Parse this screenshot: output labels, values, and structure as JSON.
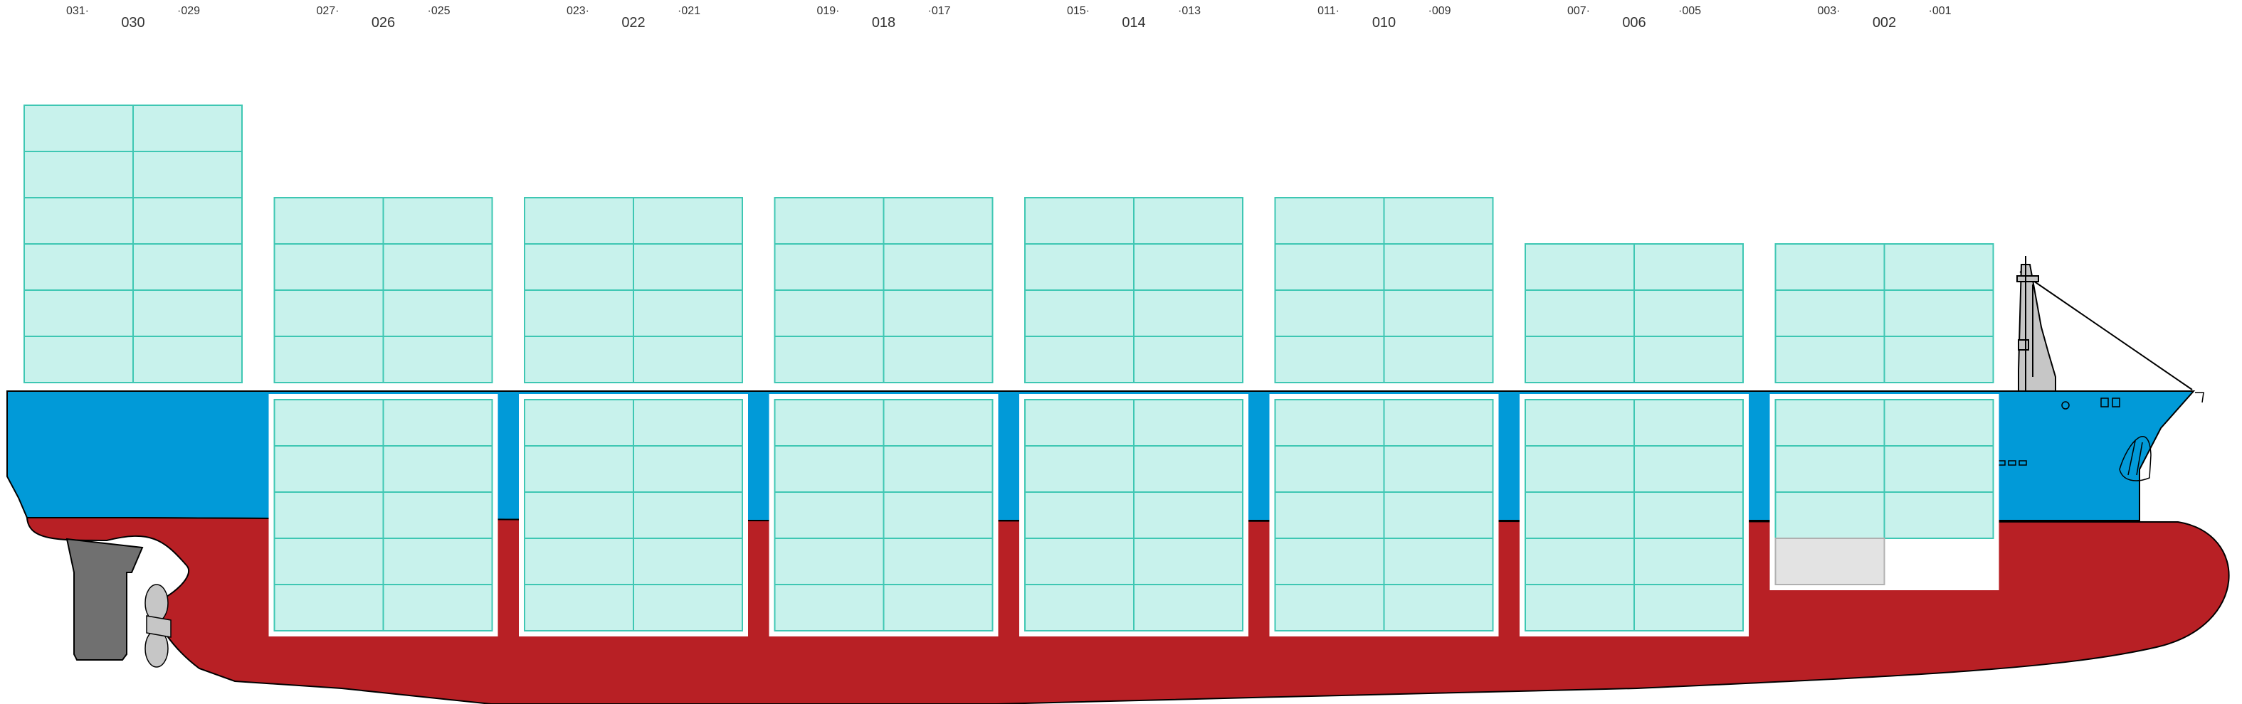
{
  "colors": {
    "hull_red": "#b82025",
    "hull_blue": "#019ad8",
    "container_fill": "#c8f2ec",
    "container_stroke": "#3ec7b3",
    "empty_slot_fill": "#e3e3e3",
    "empty_slot_stroke": "#b0b0b0",
    "rudder": "#707070",
    "label_text": "#333333"
  },
  "bays": [
    {
      "label": "030",
      "fwd_label": "031·",
      "aft_label": "·029",
      "deck_tiers": 6,
      "hold_tiers": 0,
      "empty_hold_slots": []
    },
    {
      "label": "026",
      "fwd_label": "027·",
      "aft_label": "·025",
      "deck_tiers": 4,
      "hold_tiers": 5,
      "empty_hold_slots": []
    },
    {
      "label": "022",
      "fwd_label": "023·",
      "aft_label": "·021",
      "deck_tiers": 4,
      "hold_tiers": 5,
      "empty_hold_slots": []
    },
    {
      "label": "018",
      "fwd_label": "019·",
      "aft_label": "·017",
      "deck_tiers": 4,
      "hold_tiers": 5,
      "empty_hold_slots": []
    },
    {
      "label": "014",
      "fwd_label": "015·",
      "aft_label": "·013",
      "deck_tiers": 4,
      "hold_tiers": 5,
      "empty_hold_slots": []
    },
    {
      "label": "010",
      "fwd_label": "011·",
      "aft_label": "·009",
      "deck_tiers": 4,
      "hold_tiers": 5,
      "empty_hold_slots": []
    },
    {
      "label": "006",
      "fwd_label": "007·",
      "aft_label": "·005",
      "deck_tiers": 3,
      "hold_tiers": 5,
      "empty_hold_slots": []
    },
    {
      "label": "002",
      "fwd_label": "003·",
      "aft_label": "·001",
      "deck_tiers": 3,
      "hold_tiers": 4,
      "empty_hold_slots": [
        [
          0,
          0
        ],
        [
          0,
          1
        ]
      ]
    }
  ]
}
